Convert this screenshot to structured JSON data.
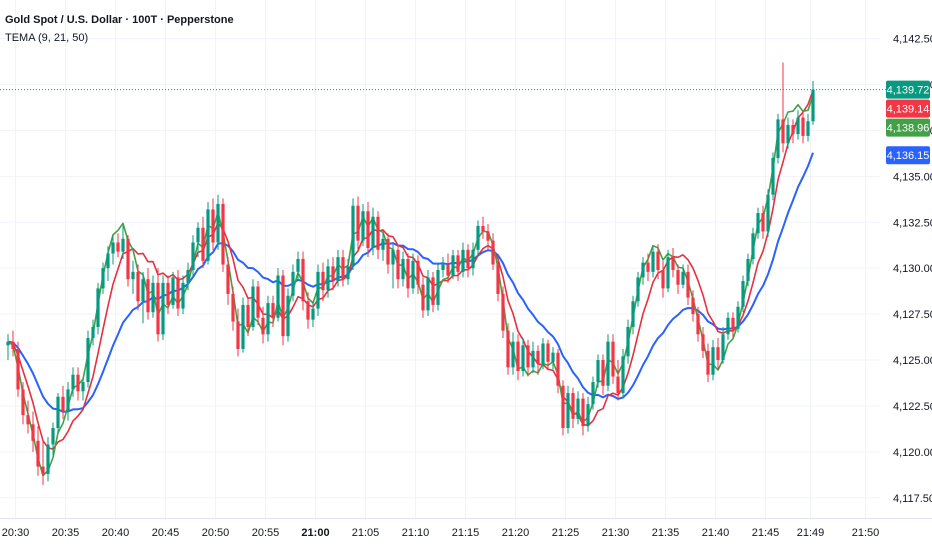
{
  "symbol": {
    "title": "Gold Spot / U.S. Dollar · 100T · Pepperstone",
    "study": "TEMA (9, 21, 50)"
  },
  "colors": {
    "up": "#089981",
    "down": "#f23645",
    "tema9": "#43a047",
    "tema21": "#e53040",
    "tema50": "#2962ff",
    "lastline": "#089981",
    "grid": "#f0f3fa",
    "axis_text": "#131722"
  },
  "chart_data": {
    "type": "candlestick",
    "title": "Gold Spot / U.S. Dollar · 100T · Pepperstone",
    "ylim": [
      4116.4,
      4144.6
    ],
    "y_ticks": [
      "4,117.50",
      "4,120.00",
      "4,122.50",
      "4,125.00",
      "4,127.50",
      "4,130.00",
      "4,132.50",
      "4,135.00",
      "4,137.50",
      "4,140.00",
      "4,142.50"
    ],
    "y_tick_values": [
      4117.5,
      4120,
      4122.5,
      4125,
      4127.5,
      4130,
      4132.5,
      4135,
      4137.5,
      4140,
      4142.5
    ],
    "x_ticks": [
      {
        "label": "20:30",
        "index": 1.5,
        "bold": false
      },
      {
        "label": "20:35",
        "index": 11.5,
        "bold": false
      },
      {
        "label": "20:40",
        "index": 21.5,
        "bold": false
      },
      {
        "label": "20:45",
        "index": 31.5,
        "bold": false
      },
      {
        "label": "20:50",
        "index": 41.5,
        "bold": false
      },
      {
        "label": "20:55",
        "index": 51.5,
        "bold": false
      },
      {
        "label": "21:00",
        "index": 61.5,
        "bold": true
      },
      {
        "label": "21:05",
        "index": 71.5,
        "bold": false
      },
      {
        "label": "21:10",
        "index": 81.5,
        "bold": false
      },
      {
        "label": "21:15",
        "index": 91.5,
        "bold": false
      },
      {
        "label": "21:20",
        "index": 101.5,
        "bold": false
      },
      {
        "label": "21:25",
        "index": 111.5,
        "bold": false
      },
      {
        "label": "21:30",
        "index": 121.5,
        "bold": false
      },
      {
        "label": "21:35",
        "index": 131.5,
        "bold": false
      },
      {
        "label": "21:40",
        "index": 141.5,
        "bold": false
      },
      {
        "label": "21:45",
        "index": 151.5,
        "bold": false
      },
      {
        "label": "21:49",
        "index": 160.5,
        "bold": false
      },
      {
        "label": "21:50",
        "index": 171.5,
        "bold": false
      }
    ],
    "ohlc": [
      [
        4125.8,
        4126.4,
        4125.0,
        4126.0
      ],
      [
        4126.0,
        4126.6,
        4125.2,
        4125.6
      ],
      [
        4125.6,
        4126.0,
        4123.0,
        4123.4
      ],
      [
        4123.4,
        4123.8,
        4121.5,
        4122.0
      ],
      [
        4122.0,
        4122.8,
        4121.0,
        4121.5
      ],
      [
        4121.5,
        4122.2,
        4120.0,
        4120.6
      ],
      [
        4120.6,
        4121.4,
        4118.7,
        4119.2
      ],
      [
        4119.2,
        4120.6,
        4118.2,
        4118.8
      ],
      [
        4118.8,
        4120.8,
        4118.4,
        4120.4
      ],
      [
        4120.4,
        4121.6,
        4119.8,
        4121.3
      ],
      [
        4121.3,
        4123.2,
        4121.0,
        4123.0
      ],
      [
        4123.0,
        4123.6,
        4121.8,
        4122.2
      ],
      [
        4122.2,
        4123.8,
        4121.7,
        4123.4
      ],
      [
        4123.4,
        4124.6,
        4123.0,
        4124.2
      ],
      [
        4124.2,
        4124.6,
        4122.8,
        4123.3
      ],
      [
        4123.3,
        4124.0,
        4122.8,
        4123.8
      ],
      [
        4123.8,
        4126.6,
        4123.5,
        4126.2
      ],
      [
        4126.2,
        4127.2,
        4125.8,
        4126.8
      ],
      [
        4126.8,
        4129.2,
        4126.4,
        4128.9
      ],
      [
        4128.9,
        4130.3,
        4128.6,
        4130.0
      ],
      [
        4130.0,
        4131.2,
        4129.3,
        4130.8
      ],
      [
        4130.8,
        4131.8,
        4130.2,
        4131.4
      ],
      [
        4131.4,
        4131.9,
        4130.6,
        4130.9
      ],
      [
        4130.9,
        4132.3,
        4130.5,
        4131.6
      ],
      [
        4131.6,
        4131.8,
        4129.0,
        4129.4
      ],
      [
        4129.4,
        4130.4,
        4128.6,
        4129.8
      ],
      [
        4129.8,
        4130.2,
        4127.7,
        4128.2
      ],
      [
        4128.2,
        4129.8,
        4127.0,
        4129.4
      ],
      [
        4129.4,
        4130.0,
        4127.2,
        4127.6
      ],
      [
        4127.6,
        4129.6,
        4127.3,
        4129.2
      ],
      [
        4129.2,
        4130.0,
        4126.0,
        4126.4
      ],
      [
        4126.4,
        4129.6,
        4126.1,
        4129.2
      ],
      [
        4129.2,
        4129.6,
        4127.5,
        4128.0
      ],
      [
        4128.0,
        4129.8,
        4127.8,
        4129.5
      ],
      [
        4129.5,
        4129.9,
        4127.4,
        4127.8
      ],
      [
        4127.8,
        4129.6,
        4127.5,
        4129.2
      ],
      [
        4129.2,
        4130.3,
        4128.8,
        4129.9
      ],
      [
        4129.9,
        4131.8,
        4129.5,
        4131.4
      ],
      [
        4131.4,
        4132.5,
        4130.6,
        4132.2
      ],
      [
        4132.2,
        4132.8,
        4130.0,
        4130.4
      ],
      [
        4130.4,
        4133.6,
        4130.2,
        4133.2
      ],
      [
        4133.2,
        4133.8,
        4131.0,
        4131.4
      ],
      [
        4131.4,
        4134.0,
        4131.0,
        4133.5
      ],
      [
        4133.5,
        4133.8,
        4129.8,
        4130.2
      ],
      [
        4130.2,
        4130.6,
        4128.0,
        4128.6
      ],
      [
        4128.6,
        4129.0,
        4126.6,
        4127.1
      ],
      [
        4127.1,
        4127.8,
        4125.2,
        4125.6
      ],
      [
        4125.6,
        4128.4,
        4125.4,
        4128.0
      ],
      [
        4128.0,
        4128.4,
        4126.3,
        4126.8
      ],
      [
        4126.8,
        4129.4,
        4126.6,
        4129.0
      ],
      [
        4129.0,
        4129.3,
        4126.9,
        4127.3
      ],
      [
        4127.3,
        4127.9,
        4125.9,
        4126.4
      ],
      [
        4126.4,
        4128.5,
        4126.0,
        4128.1
      ],
      [
        4128.1,
        4128.5,
        4126.8,
        4127.3
      ],
      [
        4127.3,
        4130.0,
        4127.1,
        4129.6
      ],
      [
        4129.6,
        4129.9,
        4125.8,
        4126.3
      ],
      [
        4126.3,
        4128.9,
        4126.0,
        4128.5
      ],
      [
        4128.5,
        4130.2,
        4128.2,
        4129.8
      ],
      [
        4129.8,
        4130.9,
        4129.3,
        4130.5
      ],
      [
        4130.5,
        4130.9,
        4127.7,
        4128.2
      ],
      [
        4128.2,
        4128.7,
        4126.7,
        4127.2
      ],
      [
        4127.2,
        4128.2,
        4126.8,
        4127.8
      ],
      [
        4127.8,
        4130.2,
        4127.4,
        4129.8
      ],
      [
        4129.8,
        4130.3,
        4128.2,
        4128.8
      ],
      [
        4128.8,
        4130.5,
        4128.4,
        4130.1
      ],
      [
        4130.1,
        4130.6,
        4128.8,
        4129.3
      ],
      [
        4129.3,
        4131.0,
        4129.0,
        4130.6
      ],
      [
        4130.6,
        4131.0,
        4129.0,
        4129.4
      ],
      [
        4129.4,
        4130.5,
        4129.1,
        4130.1
      ],
      [
        4130.1,
        4133.8,
        4129.9,
        4133.4
      ],
      [
        4133.4,
        4133.9,
        4131.0,
        4131.5
      ],
      [
        4131.5,
        4133.5,
        4131.2,
        4133.1
      ],
      [
        4133.1,
        4133.6,
        4130.6,
        4131.1
      ],
      [
        4131.1,
        4133.3,
        4130.7,
        4132.8
      ],
      [
        4132.8,
        4133.1,
        4130.5,
        4131.0
      ],
      [
        4131.0,
        4132.0,
        4130.4,
        4131.6
      ],
      [
        4131.6,
        4131.9,
        4129.7,
        4130.2
      ],
      [
        4130.2,
        4131.4,
        4128.9,
        4131.0
      ],
      [
        4131.0,
        4131.3,
        4128.9,
        4129.4
      ],
      [
        4129.4,
        4130.9,
        4129.0,
        4130.5
      ],
      [
        4130.5,
        4130.8,
        4128.4,
        4128.9
      ],
      [
        4128.9,
        4130.8,
        4128.6,
        4130.4
      ],
      [
        4130.4,
        4130.7,
        4128.6,
        4129.1
      ],
      [
        4129.1,
        4129.5,
        4127.3,
        4127.7
      ],
      [
        4127.7,
        4129.9,
        4127.4,
        4129.5
      ],
      [
        4129.5,
        4129.8,
        4127.6,
        4128.0
      ],
      [
        4128.0,
        4130.3,
        4127.7,
        4129.9
      ],
      [
        4129.9,
        4130.6,
        4129.5,
        4130.2
      ],
      [
        4130.2,
        4130.8,
        4129.2,
        4129.6
      ],
      [
        4129.6,
        4131.0,
        4129.4,
        4130.7
      ],
      [
        4130.7,
        4131.0,
        4129.3,
        4129.8
      ],
      [
        4129.8,
        4131.4,
        4129.5,
        4131.0
      ],
      [
        4131.0,
        4131.3,
        4129.5,
        4130.0
      ],
      [
        4130.0,
        4131.4,
        4129.6,
        4131.0
      ],
      [
        4131.0,
        4132.6,
        4130.6,
        4132.3
      ],
      [
        4132.3,
        4132.8,
        4131.6,
        4132.0
      ],
      [
        4132.0,
        4132.4,
        4131.0,
        4131.5
      ],
      [
        4131.5,
        4131.9,
        4129.9,
        4130.2
      ],
      [
        4130.2,
        4130.6,
        4128.2,
        4128.6
      ],
      [
        4128.6,
        4129.0,
        4126.2,
        4126.6
      ],
      [
        4126.6,
        4127.0,
        4124.2,
        4124.6
      ],
      [
        4124.6,
        4126.5,
        4124.2,
        4126.0
      ],
      [
        4126.0,
        4126.4,
        4123.9,
        4124.4
      ],
      [
        4124.4,
        4126.2,
        4124.1,
        4125.8
      ],
      [
        4125.8,
        4126.1,
        4124.1,
        4124.6
      ],
      [
        4124.6,
        4126.0,
        4124.3,
        4125.5
      ],
      [
        4125.5,
        4125.8,
        4124.2,
        4124.8
      ],
      [
        4124.8,
        4126.2,
        4124.5,
        4125.9
      ],
      [
        4125.9,
        4126.1,
        4124.5,
        4124.9
      ],
      [
        4124.9,
        4125.7,
        4124.5,
        4125.4
      ],
      [
        4125.4,
        4125.6,
        4123.2,
        4123.6
      ],
      [
        4123.6,
        4123.9,
        4120.9,
        4121.3
      ],
      [
        4121.3,
        4123.6,
        4121.0,
        4123.2
      ],
      [
        4123.2,
        4123.5,
        4121.3,
        4121.8
      ],
      [
        4121.8,
        4123.3,
        4121.5,
        4122.9
      ],
      [
        4122.9,
        4123.2,
        4120.9,
        4121.4
      ],
      [
        4121.4,
        4123.0,
        4121.1,
        4122.6
      ],
      [
        4122.6,
        4124.1,
        4122.3,
        4123.8
      ],
      [
        4123.8,
        4125.3,
        4123.5,
        4125.0
      ],
      [
        4125.0,
        4125.3,
        4123.1,
        4123.6
      ],
      [
        4123.6,
        4126.4,
        4123.3,
        4126.0
      ],
      [
        4126.0,
        4126.4,
        4123.7,
        4124.1
      ],
      [
        4124.1,
        4125.0,
        4122.8,
        4123.2
      ],
      [
        4123.2,
        4125.6,
        4122.9,
        4125.2
      ],
      [
        4125.2,
        4127.2,
        4124.8,
        4126.8
      ],
      [
        4126.8,
        4128.5,
        4126.4,
        4128.2
      ],
      [
        4128.2,
        4129.8,
        4127.9,
        4129.5
      ],
      [
        4129.5,
        4130.6,
        4129.1,
        4130.3
      ],
      [
        4130.3,
        4130.8,
        4129.3,
        4129.8
      ],
      [
        4129.8,
        4131.2,
        4129.5,
        4130.9
      ],
      [
        4130.9,
        4131.3,
        4129.4,
        4129.9
      ],
      [
        4129.9,
        4130.4,
        4128.4,
        4128.9
      ],
      [
        4128.9,
        4131.0,
        4128.7,
        4130.6
      ],
      [
        4130.6,
        4131.1,
        4129.5,
        4129.9
      ],
      [
        4129.9,
        4130.2,
        4128.6,
        4129.1
      ],
      [
        4129.1,
        4130.2,
        4128.9,
        4129.8
      ],
      [
        4129.8,
        4130.2,
        4128.0,
        4128.4
      ],
      [
        4128.4,
        4128.8,
        4127.1,
        4127.5
      ],
      [
        4127.5,
        4127.9,
        4126.0,
        4126.4
      ],
      [
        4126.4,
        4126.8,
        4125.1,
        4125.5
      ],
      [
        4125.5,
        4125.9,
        4123.8,
        4124.2
      ],
      [
        4124.2,
        4126.1,
        4123.9,
        4125.7
      ],
      [
        4125.7,
        4126.2,
        4124.5,
        4125.0
      ],
      [
        4125.0,
        4126.8,
        4124.8,
        4126.4
      ],
      [
        4126.4,
        4127.6,
        4126.1,
        4127.3
      ],
      [
        4127.3,
        4127.6,
        4126.2,
        4126.7
      ],
      [
        4126.7,
        4128.2,
        4126.5,
        4127.9
      ],
      [
        4127.9,
        4129.6,
        4127.6,
        4129.3
      ],
      [
        4129.3,
        4130.8,
        4129.0,
        4130.5
      ],
      [
        4130.5,
        4132.2,
        4130.2,
        4131.9
      ],
      [
        4131.9,
        4133.3,
        4131.6,
        4133.0
      ],
      [
        4133.0,
        4133.4,
        4131.6,
        4132.0
      ],
      [
        4132.0,
        4134.3,
        4131.7,
        4134.0
      ],
      [
        4134.0,
        4136.3,
        4133.7,
        4136.0
      ],
      [
        4136.0,
        4138.4,
        4135.7,
        4138.1
      ],
      [
        4138.1,
        4141.2,
        4136.3,
        4136.8
      ],
      [
        4136.8,
        4138.2,
        4136.5,
        4137.8
      ],
      [
        4137.8,
        4138.1,
        4136.8,
        4137.3
      ],
      [
        4137.3,
        4138.6,
        4137.0,
        4138.2
      ],
      [
        4138.2,
        4138.5,
        4136.8,
        4137.2
      ],
      [
        4137.2,
        4138.4,
        4136.9,
        4138.0
      ],
      [
        4138.0,
        4140.2,
        4137.8,
        4139.72
      ]
    ],
    "last_labels": [
      {
        "name": "last price",
        "value": "4,139.72",
        "y": 4139.72,
        "color": "#089981"
      },
      {
        "name": "TEMA 21",
        "value": "4,139.14",
        "y": 4139.14,
        "color": "#f23645"
      },
      {
        "name": "TEMA 9",
        "value": "4,138.96",
        "y": 4138.96,
        "color": "#43a047"
      },
      {
        "name": "TEMA 50",
        "value": "4,136.15",
        "y": 4136.15,
        "color": "#2962ff"
      }
    ],
    "series": [
      {
        "name": "TEMA 9",
        "period": 9,
        "color": "#43a047"
      },
      {
        "name": "TEMA 21",
        "period": 21,
        "color": "#e53040"
      },
      {
        "name": "TEMA 50",
        "period": 50,
        "color": "#2962ff"
      }
    ]
  }
}
